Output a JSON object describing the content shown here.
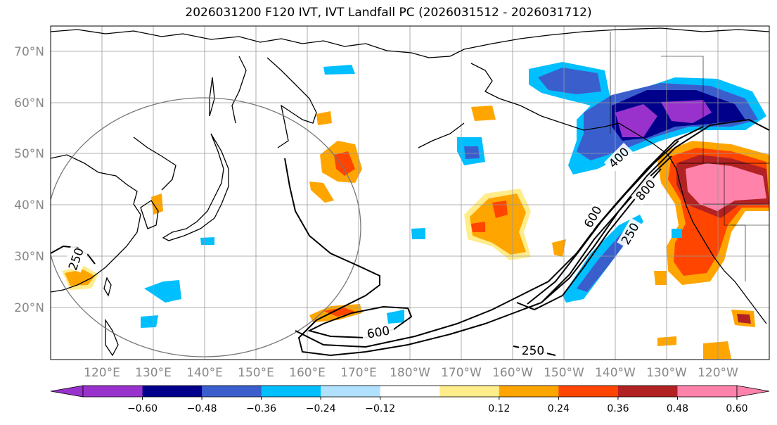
{
  "title": "2026031200 F120 IVT, IVT Landfall PC (2026031512 - 2026031712)",
  "lat_labels": [
    "70°N",
    "60°N",
    "50°N",
    "40°N",
    "30°N",
    "20°N"
  ],
  "lon_labels": [
    "120°E",
    "130°E",
    "140°E",
    "150°E",
    "160°E",
    "170°E",
    "180°W",
    "170°W",
    "160°W",
    "150°W",
    "140°W",
    "130°W",
    "120°W"
  ],
  "colorbar": {
    "colors": [
      "#9932cc",
      "#00008b",
      "#3a5fcd",
      "#00bfff",
      "#b0e2ff",
      "#ffffff",
      "#ffec8b",
      "#ffa500",
      "#ff4500",
      "#b22222",
      "#ff82ab"
    ],
    "under_color": "#9932cc",
    "over_color": "#ff82ab",
    "ticks": [
      "−0.60",
      "−0.48",
      "−0.36",
      "−0.24",
      "−0.12",
      "0.12",
      "0.24",
      "0.36",
      "0.48",
      "0.60"
    ]
  },
  "contour_labels": [
    "250",
    "600",
    "600",
    "400",
    "800",
    "250",
    "250"
  ]
}
